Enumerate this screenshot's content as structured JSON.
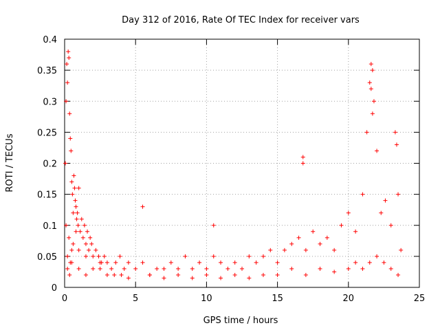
{
  "chart_data": {
    "type": "scatter",
    "title": "Day 312 of 2016, Rate Of TEC Index for receiver vars",
    "xlabel": "GPS time / hours",
    "ylabel": "ROTI / TECUs",
    "xlim": [
      0,
      25
    ],
    "ylim": [
      0,
      0.4
    ],
    "x_ticks": [
      "0",
      "5",
      "10",
      "15",
      "20",
      "25"
    ],
    "y_ticks": [
      "0",
      "0.05",
      "0.1",
      "0.15",
      "0.2",
      "0.25",
      "0.3",
      "0.35",
      "0.4"
    ],
    "grid": true,
    "marker": "plus",
    "color": "#ff0000",
    "series": [
      {
        "x": [
          0.05,
          0.1,
          0.15,
          0.2,
          0.25,
          0.3,
          0.35,
          0.4,
          0.45,
          0.5,
          0.55,
          0.6,
          0.65,
          0.7,
          0.75,
          0.8,
          0.85,
          0.9,
          0.95,
          1.0,
          1.1,
          1.2,
          1.3,
          1.4,
          1.5,
          1.6,
          1.7,
          1.8,
          1.9,
          2.0,
          2.2,
          2.4,
          2.6,
          2.8,
          3.0,
          3.3,
          3.6,
          3.9,
          4.2,
          4.5,
          5.0,
          5.5,
          6.0,
          6.5,
          7.0,
          7.5,
          8.0,
          8.5,
          9.0,
          9.5,
          10.0,
          10.5,
          11.0,
          11.5,
          12.0,
          12.5,
          13.0,
          13.5,
          14.0,
          14.5,
          15.0,
          15.5,
          16.0,
          16.5,
          16.8,
          17.0,
          17.5,
          18.0,
          18.5,
          19.0,
          19.5,
          20.0,
          20.5,
          21.0,
          21.3,
          21.5,
          21.6,
          21.7,
          21.8,
          22.0,
          22.3,
          22.6,
          23.0,
          23.3,
          23.5,
          23.7,
          0.1,
          0.3,
          0.5,
          0.2,
          0.4,
          0.6,
          0.8,
          1.0,
          1.5,
          2.0,
          2.5,
          3.0,
          4.0,
          5.5,
          10.5,
          16.8,
          21.7,
          21.6,
          23.4,
          0.2,
          0.35,
          0.5,
          1.0,
          1.5,
          2.5,
          3.5,
          4.5,
          6.0,
          7.0,
          8.0,
          9.0,
          10.0,
          11.0,
          12.0,
          13.0,
          14.0,
          15.0,
          16.0,
          17.0,
          18.0,
          19.0,
          20.0,
          20.5,
          21.0,
          21.5,
          22.0,
          22.5,
          23.0,
          23.5
        ],
        "y": [
          0.2,
          0.3,
          0.36,
          0.33,
          0.38,
          0.37,
          0.28,
          0.24,
          0.22,
          0.17,
          0.15,
          0.12,
          0.18,
          0.16,
          0.14,
          0.13,
          0.11,
          0.12,
          0.1,
          0.16,
          0.09,
          0.11,
          0.08,
          0.1,
          0.07,
          0.09,
          0.06,
          0.08,
          0.07,
          0.05,
          0.06,
          0.05,
          0.04,
          0.05,
          0.04,
          0.03,
          0.04,
          0.05,
          0.03,
          0.04,
          0.03,
          0.04,
          0.02,
          0.03,
          0.03,
          0.04,
          0.03,
          0.05,
          0.03,
          0.04,
          0.03,
          0.05,
          0.04,
          0.03,
          0.04,
          0.03,
          0.05,
          0.04,
          0.05,
          0.06,
          0.04,
          0.06,
          0.07,
          0.08,
          0.21,
          0.06,
          0.09,
          0.07,
          0.08,
          0.06,
          0.1,
          0.12,
          0.09,
          0.15,
          0.25,
          0.33,
          0.36,
          0.35,
          0.3,
          0.22,
          0.12,
          0.14,
          0.1,
          0.25,
          0.15,
          0.06,
          0.1,
          0.08,
          0.06,
          0.05,
          0.04,
          0.07,
          0.09,
          0.06,
          0.05,
          0.03,
          0.04,
          0.02,
          0.02,
          0.13,
          0.1,
          0.2,
          0.28,
          0.32,
          0.23,
          0.03,
          0.02,
          0.04,
          0.03,
          0.02,
          0.03,
          0.02,
          0.015,
          0.02,
          0.015,
          0.02,
          0.015,
          0.02,
          0.015,
          0.02,
          0.015,
          0.02,
          0.02,
          0.03,
          0.02,
          0.03,
          0.025,
          0.03,
          0.04,
          0.03,
          0.04,
          0.05,
          0.04,
          0.03,
          0.02
        ]
      }
    ]
  }
}
